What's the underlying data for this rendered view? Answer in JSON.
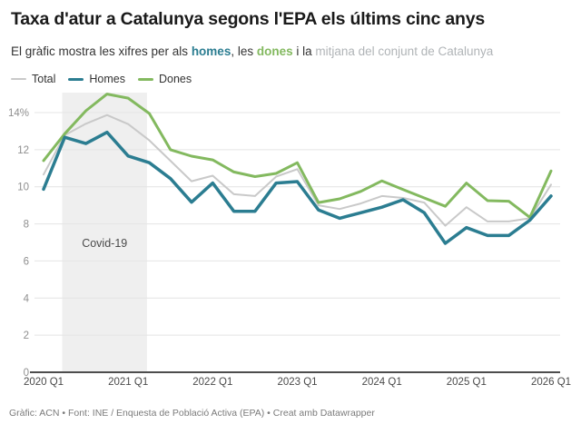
{
  "header": {
    "title": "Taxa d'atur a Catalunya segons l'EPA els últims cinc anys",
    "subtitle_parts": [
      {
        "text": "El gràfic mostra les xifres per als ",
        "color": "#333333",
        "bold": false
      },
      {
        "text": "homes",
        "color": "#2b7d91",
        "bold": true
      },
      {
        "text": ", les ",
        "color": "#333333",
        "bold": false
      },
      {
        "text": "dones",
        "color": "#83b95f",
        "bold": true
      },
      {
        "text": " i la ",
        "color": "#333333",
        "bold": false
      },
      {
        "text": "mitjana del conjunt de Catalunya",
        "color": "#b0b4b7",
        "bold": false
      }
    ]
  },
  "legend": [
    {
      "label": "Total",
      "color": "#c9c9c9",
      "thickness": 2
    },
    {
      "label": "Homes",
      "color": "#2b7d91",
      "thickness": 3
    },
    {
      "label": "Dones",
      "color": "#83b95f",
      "thickness": 3
    }
  ],
  "chart_data": {
    "type": "line",
    "unit": "%",
    "x": [
      "2020 Q1",
      "2020 Q2",
      "2020 Q3",
      "2020 Q4",
      "2021 Q1",
      "2021 Q2",
      "2021 Q3",
      "2021 Q4",
      "2022 Q1",
      "2022 Q2",
      "2022 Q3",
      "2022 Q4",
      "2023 Q1",
      "2023 Q2",
      "2023 Q3",
      "2023 Q4",
      "2024 Q1",
      "2024 Q2",
      "2024 Q3",
      "2024 Q4",
      "2025 Q1",
      "2025 Q2",
      "2025 Q3",
      "2025 Q4",
      "2026 Q1"
    ],
    "x_tick_indices": [
      0,
      4,
      8,
      12,
      16,
      20,
      24
    ],
    "y_ticks": {
      "values": [
        0,
        2,
        4,
        6,
        8,
        10,
        12,
        14
      ],
      "labels": [
        "0",
        "2",
        "4",
        "6",
        "8",
        "10",
        "12",
        "14%"
      ]
    },
    "ylim": [
      0,
      15.2
    ],
    "grid": true,
    "legend_position": "top-left",
    "series": [
      {
        "name": "Total",
        "color": "#c9c9c9",
        "stroke_width": 2,
        "values": [
          10.66,
          12.78,
          13.4,
          13.87,
          13.38,
          12.5,
          11.4,
          10.3,
          10.6,
          9.6,
          9.5,
          10.55,
          10.95,
          9.0,
          8.8,
          9.1,
          9.5,
          9.4,
          9.15,
          7.9,
          8.9,
          8.13,
          8.13,
          8.3,
          10.12
        ]
      },
      {
        "name": "Dones",
        "color": "#83b95f",
        "stroke_width": 3,
        "values": [
          11.41,
          12.86,
          14.1,
          15.0,
          14.78,
          13.95,
          12.0,
          11.65,
          11.45,
          10.8,
          10.55,
          10.72,
          11.3,
          9.15,
          9.35,
          9.75,
          10.32,
          9.85,
          9.4,
          8.95,
          10.2,
          9.25,
          9.22,
          8.35,
          10.85
        ]
      },
      {
        "name": "Homes",
        "color": "#2b7d91",
        "stroke_width": 3.5,
        "values": [
          9.87,
          12.67,
          12.33,
          12.94,
          11.66,
          11.3,
          10.44,
          9.17,
          10.2,
          8.68,
          8.68,
          10.2,
          10.28,
          8.75,
          8.3,
          8.6,
          8.9,
          9.3,
          8.6,
          6.95,
          7.8,
          7.37,
          7.37,
          8.2,
          9.5
        ]
      }
    ],
    "annotation": {
      "label": "Covid-19",
      "from": "2020 Q2",
      "to": "2021 Q2",
      "band_color": "#efefef"
    }
  },
  "footer": {
    "text": "Gràfic: ACN • Font: INE / Enquesta de Població Activa (EPA) • Creat amb Datawrapper"
  }
}
